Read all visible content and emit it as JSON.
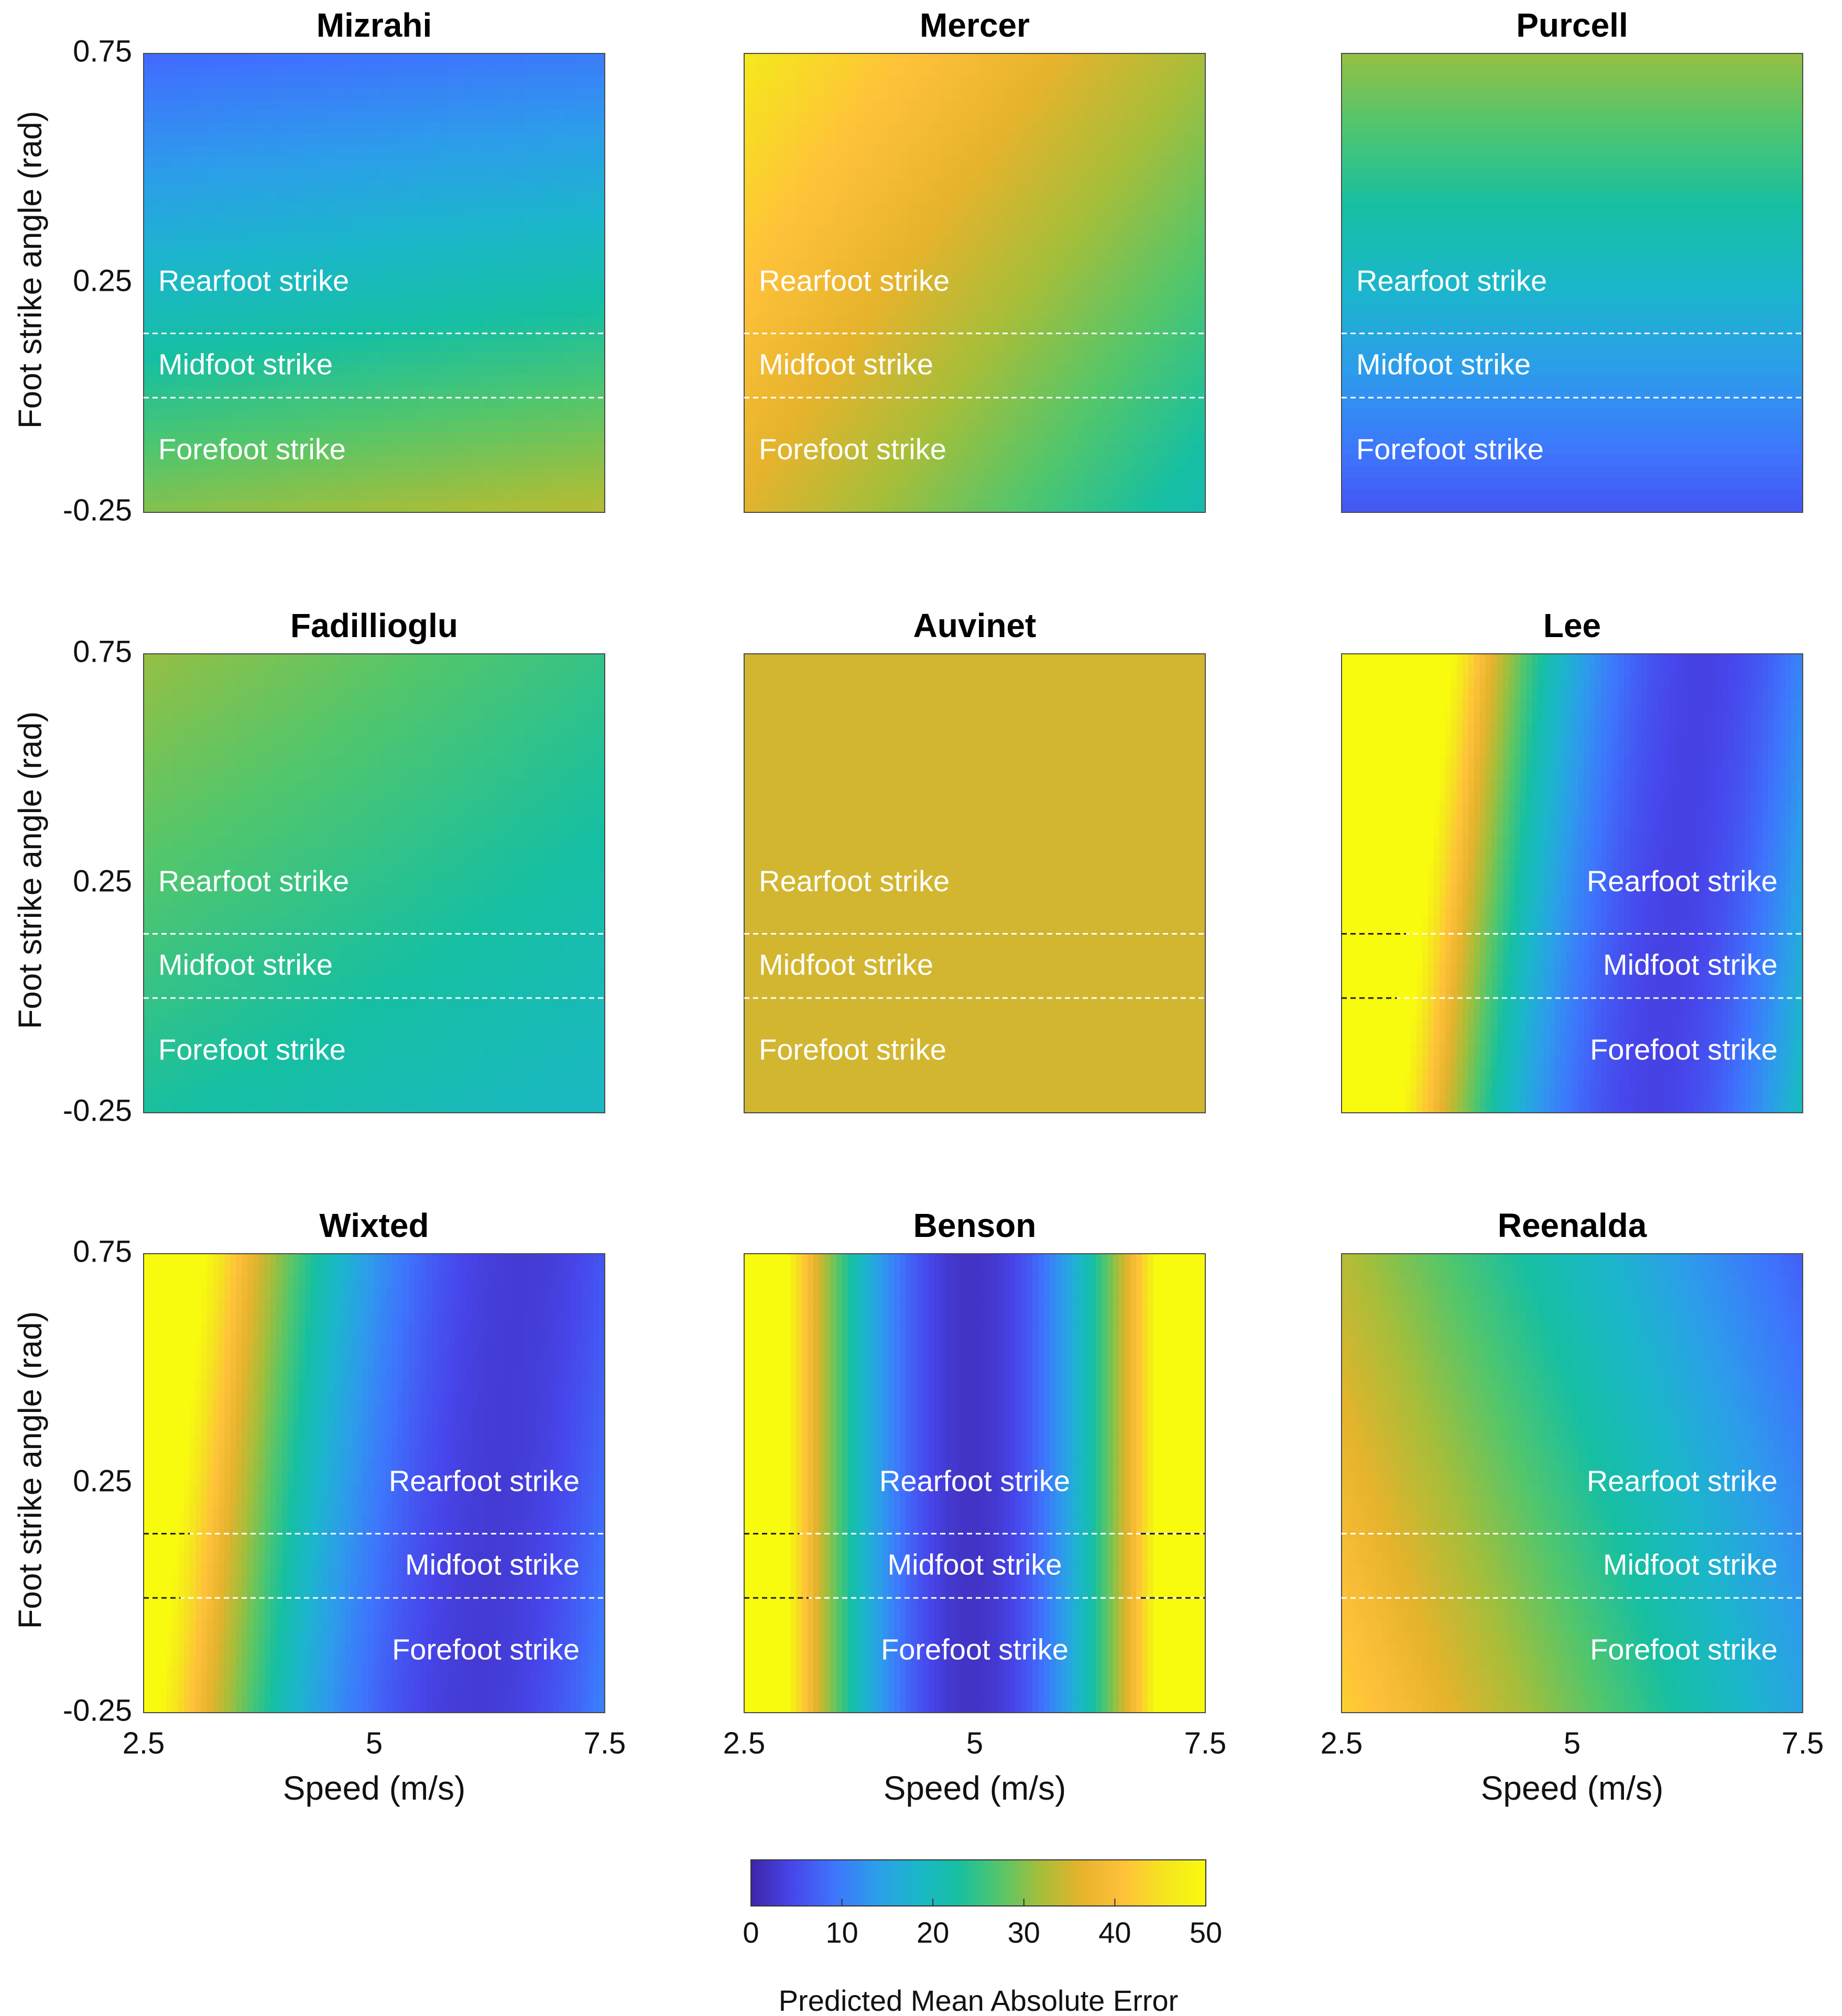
{
  "chart_data": [
    {
      "type": "heatmap",
      "title": "Mizrahi",
      "xlabel": "",
      "ylabel": "Foot strike angle (rad)",
      "xlim": [
        2.5,
        7.5
      ],
      "ylim": [
        -0.25,
        0.75
      ],
      "xticks": [],
      "yticks": [
        "0.75",
        "0.25",
        "-0.25"
      ],
      "labels_align": "left",
      "grid": {
        "tl": 8,
        "tr": 10,
        "bl": 30,
        "br": 33
      },
      "dividers": [
        {
          "y": 0.14
        },
        {
          "y": 0.0
        }
      ]
    },
    {
      "type": "heatmap",
      "title": "Mercer",
      "xlabel": "",
      "ylabel": "",
      "xlim": [
        2.5,
        7.5
      ],
      "ylim": [
        -0.25,
        0.75
      ],
      "xticks": [],
      "yticks": [],
      "labels_align": "left",
      "grid": {
        "tl": 46,
        "tr": 32,
        "bl": 36,
        "br": 21
      },
      "dividers": [
        {
          "y": 0.14
        },
        {
          "y": 0.0
        }
      ]
    },
    {
      "type": "heatmap",
      "title": "Purcell",
      "xlabel": "",
      "ylabel": "",
      "xlim": [
        2.5,
        7.5
      ],
      "ylim": [
        -0.25,
        0.75
      ],
      "xticks": [],
      "yticks": [],
      "labels_align": "left",
      "grid": {
        "tl": 31,
        "tr": 31,
        "bl": 6,
        "br": 6
      },
      "dividers": [
        {
          "y": 0.14
        },
        {
          "y": 0.0
        }
      ]
    },
    {
      "type": "heatmap",
      "title": "Fadillioglu",
      "xlabel": "",
      "ylabel": "Foot strike angle (rad)",
      "xlim": [
        2.5,
        7.5
      ],
      "ylim": [
        -0.25,
        0.75
      ],
      "xticks": [],
      "yticks": [
        "0.75",
        "0.25",
        "-0.25"
      ],
      "labels_align": "left",
      "grid": {
        "tl": 31,
        "tr": 25,
        "bl": 23,
        "br": 19
      },
      "dividers": [
        {
          "y": 0.14
        },
        {
          "y": 0.0
        }
      ]
    },
    {
      "type": "heatmap",
      "title": "Auvinet",
      "xlabel": "",
      "ylabel": "",
      "xlim": [
        2.5,
        7.5
      ],
      "ylim": [
        -0.25,
        0.75
      ],
      "xticks": [],
      "yticks": [],
      "labels_align": "left",
      "grid": {
        "tl": 35,
        "tr": 35,
        "bl": 35,
        "br": 35
      },
      "dividers": [
        {
          "y": 0.14
        },
        {
          "y": 0.0
        }
      ]
    },
    {
      "type": "heatmap",
      "title": "Lee",
      "xlabel": "",
      "ylabel": "",
      "xlim": [
        2.5,
        7.5
      ],
      "ylim": [
        -0.25,
        0.75
      ],
      "xticks": [],
      "yticks": [],
      "labels_align": "right",
      "grid": null,
      "dividers": [
        {
          "y": 0.14,
          "black_until": 3.2
        },
        {
          "y": 0.0,
          "black_until": 3.1
        }
      ]
    },
    {
      "type": "heatmap",
      "title": "Wixted",
      "xlabel": "Speed (m/s)",
      "ylabel": "Foot strike angle (rad)",
      "xlim": [
        2.5,
        7.5
      ],
      "ylim": [
        -0.25,
        0.75
      ],
      "xticks": [
        "2.5",
        "5",
        "7.5"
      ],
      "yticks": [
        "0.75",
        "0.25",
        "-0.25"
      ],
      "labels_align": "right",
      "grid": null,
      "dividers": [
        {
          "y": 0.14,
          "black_until": 3.0
        },
        {
          "y": 0.0,
          "black_until": 2.9
        }
      ]
    },
    {
      "type": "heatmap",
      "title": "Benson",
      "xlabel": "Speed (m/s)",
      "ylabel": "",
      "xlim": [
        2.5,
        7.5
      ],
      "ylim": [
        -0.25,
        0.75
      ],
      "xticks": [
        "2.5",
        "5",
        "7.5"
      ],
      "yticks": [],
      "labels_align": "center",
      "grid": null,
      "dividers": [
        {
          "y": 0.14,
          "black_until": 3.1,
          "black_from": 6.8
        },
        {
          "y": 0.0,
          "black_until": 3.2,
          "black_from": 6.8
        }
      ]
    },
    {
      "type": "heatmap",
      "title": "Reenalda",
      "xlabel": "Speed (m/s)",
      "ylabel": "",
      "xlim": [
        2.5,
        7.5
      ],
      "ylim": [
        -0.25,
        0.75
      ],
      "xticks": [
        "2.5",
        "5",
        "7.5"
      ],
      "yticks": [],
      "labels_align": "right",
      "grid": {
        "tl": 33,
        "tr": 7,
        "bl": 43,
        "br": 15
      },
      "dividers": [
        {
          "y": 0.14
        },
        {
          "y": 0.0
        }
      ]
    }
  ],
  "region_labels": [
    "Rearfoot strike",
    "Midfoot strike",
    "Forefoot strike"
  ],
  "colorbar": {
    "label": "Predicted Mean Absolute Error",
    "range": [
      0,
      50
    ],
    "ticks": [
      "0",
      "10",
      "20",
      "30",
      "40",
      "50"
    ]
  },
  "colors": {
    "divider": "#ffffff",
    "divider_dark": "#1a1a1a",
    "colormap": [
      "#3e26a8",
      "#4746eb",
      "#3e74fd",
      "#2d9ceb",
      "#1bb6cb",
      "#16bfa2",
      "#53c66b",
      "#a5be3a",
      "#e6b32c",
      "#ffc13a",
      "#f5e51e",
      "#f9fb0e"
    ]
  }
}
